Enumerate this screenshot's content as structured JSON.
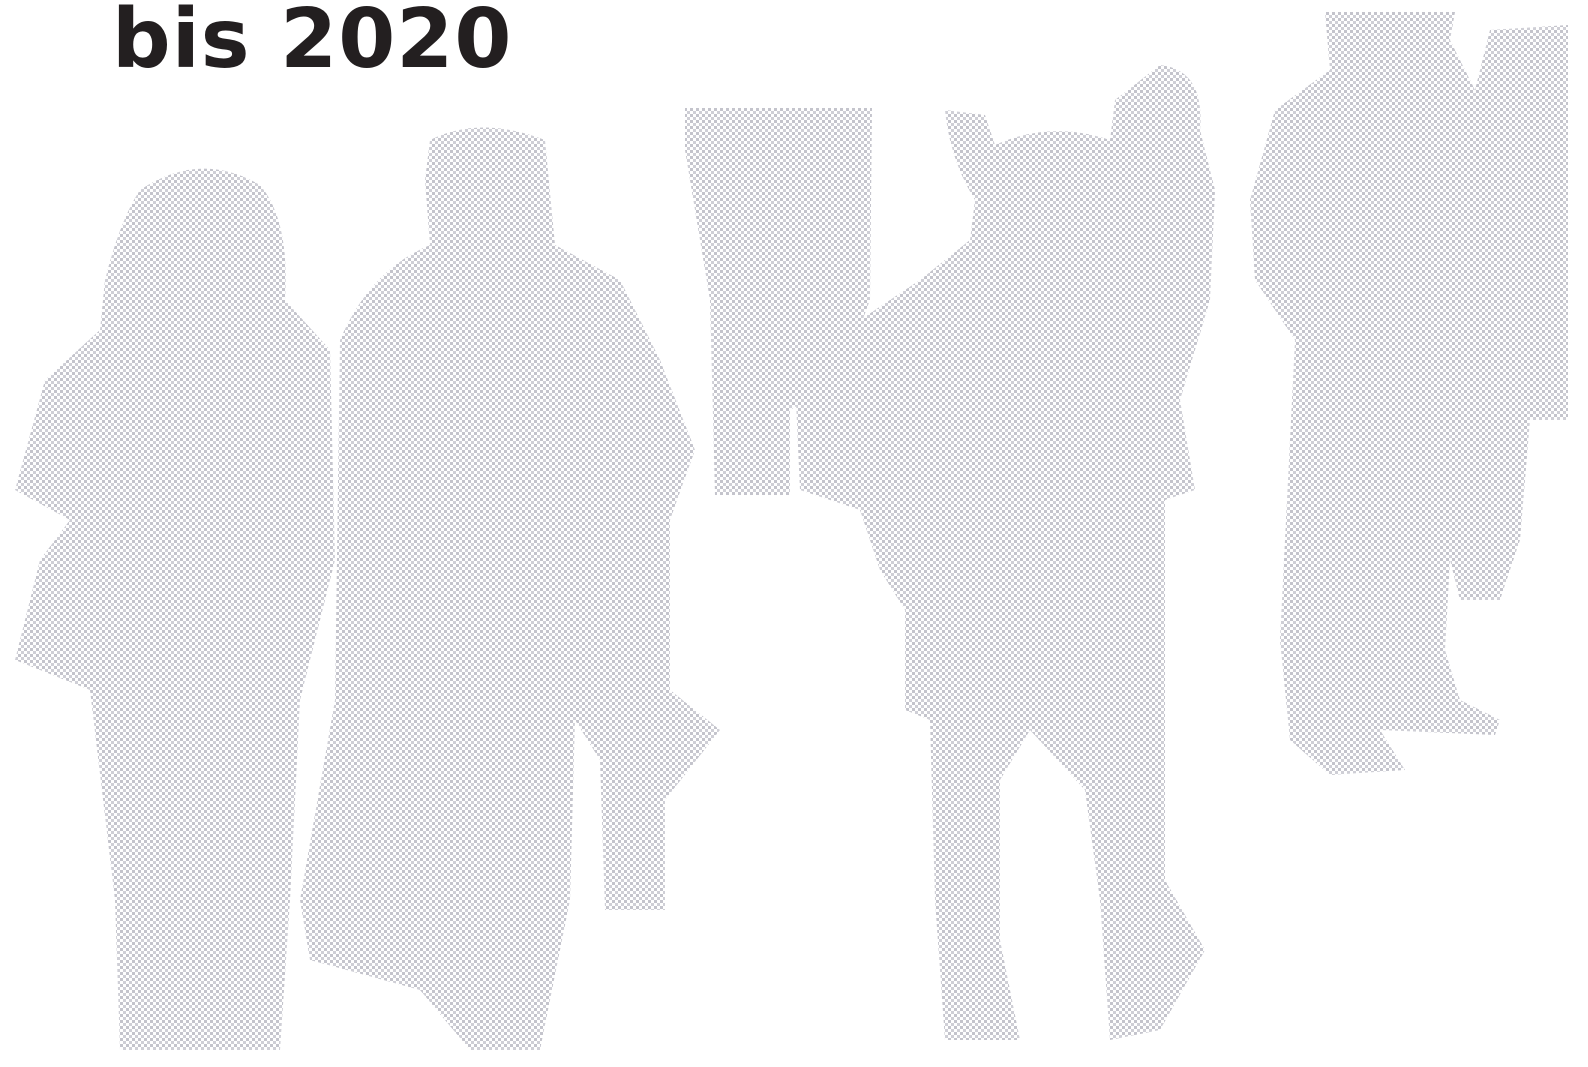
{
  "header": {
    "title": "bis 2020"
  }
}
